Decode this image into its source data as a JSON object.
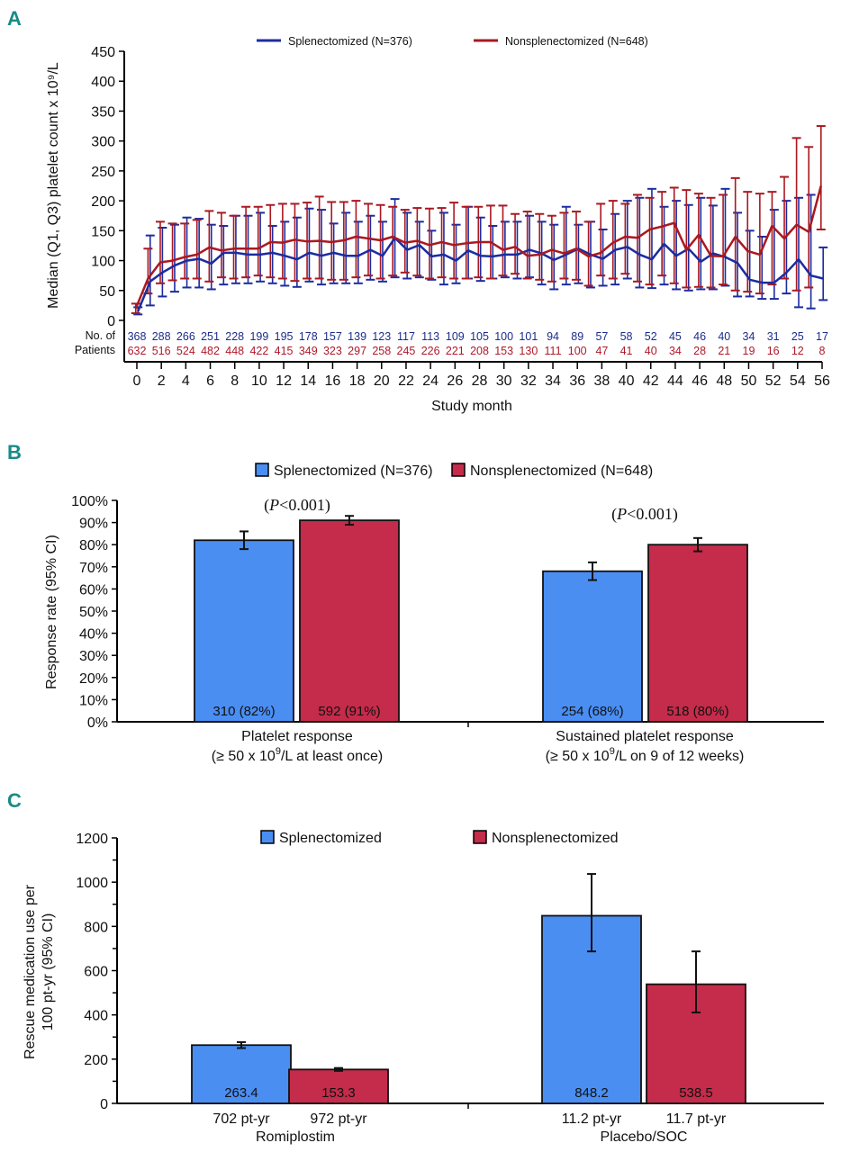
{
  "panels": {
    "A": "A",
    "B": "B",
    "C": "C"
  },
  "chart_data": [
    {
      "panel": "A",
      "type": "line",
      "title": "",
      "xlabel": "Study month",
      "ylabel": "Median (Q1, Q3) platelet count x 10⁹/L",
      "ylim": [
        0,
        450
      ],
      "xlim": [
        0,
        56
      ],
      "yticks": [
        0,
        50,
        100,
        150,
        200,
        250,
        300,
        350,
        400,
        450
      ],
      "xticks": [
        0,
        2,
        4,
        6,
        8,
        10,
        12,
        14,
        16,
        18,
        20,
        22,
        24,
        26,
        28,
        30,
        32,
        34,
        36,
        38,
        40,
        42,
        44,
        46,
        48,
        50,
        52,
        54,
        56
      ],
      "legend_position": "top-center",
      "x": [
        0,
        1,
        2,
        3,
        4,
        5,
        6,
        7,
        8,
        9,
        10,
        11,
        12,
        13,
        14,
        15,
        16,
        17,
        18,
        19,
        20,
        21,
        22,
        23,
        24,
        25,
        26,
        27,
        28,
        29,
        30,
        31,
        32,
        33,
        34,
        35,
        36,
        37,
        38,
        39,
        40,
        41,
        42,
        43,
        44,
        45,
        46,
        47,
        48,
        49,
        50,
        51,
        52,
        53,
        54,
        55,
        56
      ],
      "series": [
        {
          "name": "Splenectomized (N=376)",
          "color": "#1c2ca0",
          "median": [
            15,
            65,
            80,
            92,
            100,
            103,
            95,
            113,
            113,
            110,
            110,
            113,
            108,
            102,
            113,
            108,
            113,
            108,
            108,
            118,
            108,
            138,
            118,
            126,
            107,
            110,
            100,
            117,
            108,
            107,
            110,
            110,
            118,
            112,
            101,
            110,
            120,
            110,
            103,
            118,
            123,
            110,
            102,
            128,
            108,
            120,
            98,
            112,
            106,
            96,
            68,
            63,
            63,
            80,
            102,
            75,
            70
          ],
          "q1": [
            10,
            25,
            40,
            48,
            55,
            55,
            52,
            60,
            62,
            62,
            65,
            62,
            58,
            56,
            65,
            60,
            62,
            62,
            62,
            68,
            65,
            72,
            70,
            72,
            68,
            60,
            62,
            70,
            66,
            70,
            72,
            70,
            72,
            60,
            52,
            60,
            62,
            55,
            58,
            60,
            70,
            55,
            54,
            60,
            52,
            50,
            52,
            52,
            58,
            40,
            40,
            36,
            36,
            45,
            22,
            20,
            34
          ],
          "q3": [
            22,
            142,
            155,
            160,
            172,
            170,
            160,
            158,
            175,
            175,
            180,
            158,
            165,
            172,
            187,
            185,
            162,
            180,
            165,
            175,
            165,
            203,
            180,
            165,
            150,
            180,
            160,
            190,
            172,
            158,
            165,
            165,
            175,
            165,
            160,
            190,
            160,
            165,
            152,
            178,
            200,
            205,
            220,
            190,
            200,
            193,
            205,
            192,
            220,
            180,
            150,
            140,
            185,
            200,
            205,
            210,
            122
          ]
        },
        {
          "name": "Nonsplenectomized (N=648)",
          "color": "#aa1820",
          "median": [
            20,
            70,
            97,
            100,
            106,
            110,
            122,
            117,
            120,
            120,
            120,
            131,
            130,
            135,
            132,
            133,
            131,
            134,
            140,
            137,
            134,
            140,
            130,
            133,
            126,
            131,
            126,
            129,
            131,
            131,
            118,
            123,
            108,
            110,
            118,
            112,
            120,
            107,
            113,
            130,
            140,
            138,
            152,
            157,
            163,
            118,
            143,
            108,
            107,
            140,
            116,
            110,
            158,
            137,
            160,
            148,
            225
          ],
          "q1": [
            12,
            45,
            62,
            67,
            70,
            70,
            65,
            72,
            70,
            72,
            75,
            72,
            70,
            66,
            70,
            70,
            68,
            68,
            72,
            75,
            70,
            75,
            80,
            75,
            70,
            72,
            70,
            70,
            72,
            70,
            75,
            78,
            70,
            68,
            65,
            70,
            68,
            58,
            75,
            70,
            78,
            65,
            60,
            75,
            62,
            55,
            56,
            55,
            60,
            50,
            48,
            45,
            60,
            70,
            50,
            55,
            152
          ],
          "q3": [
            28,
            120,
            165,
            162,
            162,
            168,
            183,
            180,
            175,
            190,
            190,
            193,
            195,
            195,
            197,
            207,
            198,
            198,
            200,
            195,
            193,
            190,
            185,
            188,
            187,
            188,
            197,
            190,
            190,
            192,
            192,
            178,
            182,
            178,
            175,
            180,
            182,
            165,
            195,
            200,
            195,
            210,
            205,
            215,
            222,
            218,
            212,
            205,
            210,
            238,
            215,
            212,
            215,
            240,
            305,
            290,
            325
          ]
        }
      ],
      "n_at_risk": {
        "label_line1": "No. of",
        "label_line2": "Patients",
        "months": [
          0,
          2,
          4,
          6,
          8,
          10,
          12,
          14,
          16,
          18,
          20,
          22,
          24,
          26,
          28,
          30,
          32,
          34,
          36,
          38,
          40,
          42,
          44,
          46,
          48,
          50,
          52,
          54,
          56
        ],
        "splenectomized": [
          368,
          288,
          266,
          251,
          228,
          199,
          195,
          178,
          157,
          139,
          123,
          117,
          113,
          109,
          105,
          100,
          101,
          94,
          89,
          57,
          58,
          52,
          45,
          46,
          40,
          34,
          31,
          25,
          17
        ],
        "nonsplenectomized": [
          632,
          516,
          524,
          482,
          448,
          422,
          415,
          349,
          323,
          297,
          258,
          245,
          226,
          221,
          208,
          153,
          130,
          111,
          100,
          47,
          41,
          40,
          34,
          28,
          21,
          19,
          16,
          12,
          8
        ]
      }
    },
    {
      "panel": "B",
      "type": "bar",
      "title": "",
      "xlabel": "",
      "ylabel": "Response rate (95% CI)",
      "ylim": [
        0,
        100
      ],
      "yticks": [
        "0%",
        "10%",
        "20%",
        "30%",
        "40%",
        "50%",
        "60%",
        "70%",
        "80%",
        "90%",
        "100%"
      ],
      "legend_position": "top-center",
      "categories": [
        {
          "line1": "Platelet response",
          "line2a": "(≥ 50 x 10",
          "sup": "9",
          "line2b": "/L at least once)"
        },
        {
          "line1": "Sustained platelet response",
          "line2a": "(≥ 50 x 10",
          "sup": "9",
          "line2b": "/L on 9 of 12 weeks)"
        }
      ],
      "annotations": [
        {
          "pre": "(",
          "italic": "P",
          "post": "<0.001)"
        },
        {
          "pre": "(",
          "italic": "P",
          "post": "<0.001)"
        }
      ],
      "series": [
        {
          "name": "Splenectomized (N=376)",
          "color": "#4a8ef2",
          "values": [
            82,
            68
          ],
          "ci_low": [
            78,
            64
          ],
          "ci_high": [
            86,
            72
          ],
          "labels": [
            "310 (82%)",
            "254 (68%)"
          ]
        },
        {
          "name": "Nonsplenectomized (N=648)",
          "color": "#c52b4a",
          "values": [
            91,
            80
          ],
          "ci_low": [
            89,
            77
          ],
          "ci_high": [
            93,
            83
          ],
          "labels": [
            "592 (91%)",
            "518 (80%)"
          ]
        }
      ]
    },
    {
      "panel": "C",
      "type": "bar",
      "title": "",
      "xlabel": "",
      "ylabel_line1": "Rescue medication use per",
      "ylabel_line2": "100 pt-yr (95% CI)",
      "ylim": [
        0,
        1200
      ],
      "yticks": [
        0,
        200,
        400,
        600,
        800,
        1000,
        1200
      ],
      "legend_position": "top-center",
      "categories": [
        "Romiplostim",
        "Placebo/SOC"
      ],
      "series": [
        {
          "name": "Splenectomized",
          "color": "#4a8ef2",
          "values": [
            263.4,
            848.2
          ],
          "ci_low": [
            250,
            687
          ],
          "ci_high": [
            277,
            1037
          ],
          "labels": [
            "263.4",
            "848.2"
          ],
          "exposure": [
            "702 pt-yr",
            "11.2 pt-yr"
          ]
        },
        {
          "name": "Nonsplenectomized",
          "color": "#c52b4a",
          "values": [
            153.3,
            538.5
          ],
          "ci_low": [
            147,
            411
          ],
          "ci_high": [
            160,
            687
          ],
          "labels": [
            "153.3",
            "538.5"
          ],
          "exposure": [
            "972 pt-yr",
            "11.7 pt-yr"
          ]
        }
      ]
    }
  ]
}
